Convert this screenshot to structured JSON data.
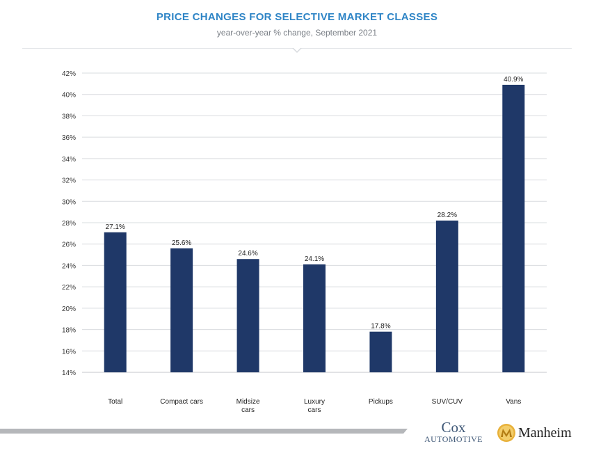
{
  "header": {
    "title": "PRICE CHANGES FOR SELECTIVE MARKET CLASSES",
    "subtitle": "year-over-year % change, September 2021"
  },
  "chart_data": {
    "type": "bar",
    "title": "PRICE CHANGES FOR SELECTIVE MARKET CLASSES",
    "subtitle": "year-over-year % change, September 2021",
    "categories": [
      "Total",
      "Compact cars",
      "Midsize cars",
      "Luxury cars",
      "Pickups",
      "SUV/CUV",
      "Vans"
    ],
    "category_label_lines": [
      [
        "Total"
      ],
      [
        "Compact cars"
      ],
      [
        "Midsize",
        "cars"
      ],
      [
        "Luxury",
        "cars"
      ],
      [
        "Pickups"
      ],
      [
        "SUV/CUV"
      ],
      [
        "Vans"
      ]
    ],
    "values": [
      27.1,
      25.6,
      24.6,
      24.1,
      17.8,
      28.2,
      40.9
    ],
    "value_labels": [
      "27.1%",
      "25.6%",
      "24.6%",
      "24.1%",
      "17.8%",
      "28.2%",
      "40.9%"
    ],
    "ylim": [
      14,
      42
    ],
    "ytick_step": 2,
    "ytick_labels": [
      "14%",
      "16%",
      "18%",
      "20%",
      "22%",
      "24%",
      "26%",
      "28%",
      "30%",
      "32%",
      "34%",
      "36%",
      "38%",
      "40%",
      "42%"
    ],
    "xlabel": "",
    "ylabel": "",
    "grid": true,
    "legend": "none",
    "bar_color": "#1f3868"
  },
  "footer": {
    "logo_cox_top": "Cox",
    "logo_cox_bottom": "AUTOMOTIVE",
    "logo_manheim": "Manheim"
  },
  "colors": {
    "title": "#2f85c6",
    "bar": "#1f3868",
    "grid": "#d9dcdf"
  }
}
